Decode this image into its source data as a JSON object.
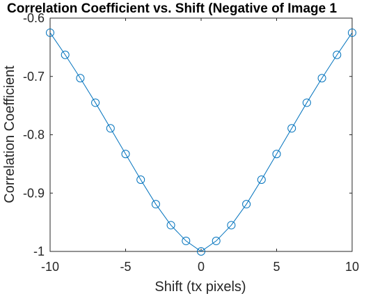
{
  "chart_data": {
    "type": "line",
    "title": "Correlation Coefficient vs. Shift (Negative of Image 1",
    "xlabel": "Shift (tx pixels)",
    "ylabel": "Correlation Coefficient",
    "xlim": [
      -10,
      10
    ],
    "ylim": [
      -1,
      -0.6
    ],
    "xticks": [
      -10,
      -5,
      0,
      5,
      10
    ],
    "xtick_labels": [
      "-10",
      "-5",
      "0",
      "5",
      "10"
    ],
    "yticks": [
      -1,
      -0.9,
      -0.8,
      -0.7,
      -0.6
    ],
    "ytick_labels": [
      "-1",
      "-0.9",
      "-0.8",
      "-0.7",
      "-0.6"
    ],
    "grid": false,
    "marker": "circle",
    "color": "#0072BD",
    "series": [
      {
        "x": [
          -10,
          -9,
          -8,
          -7,
          -6,
          -5,
          -4,
          -3,
          -2,
          -1,
          0,
          1,
          2,
          3,
          4,
          5,
          6,
          7,
          8,
          9,
          10
        ],
        "y": [
          -0.625,
          -0.663,
          -0.703,
          -0.745,
          -0.789,
          -0.833,
          -0.877,
          -0.919,
          -0.955,
          -0.982,
          -1.0,
          -0.982,
          -0.955,
          -0.919,
          -0.877,
          -0.833,
          -0.789,
          -0.745,
          -0.703,
          -0.663,
          -0.625
        ]
      }
    ]
  }
}
